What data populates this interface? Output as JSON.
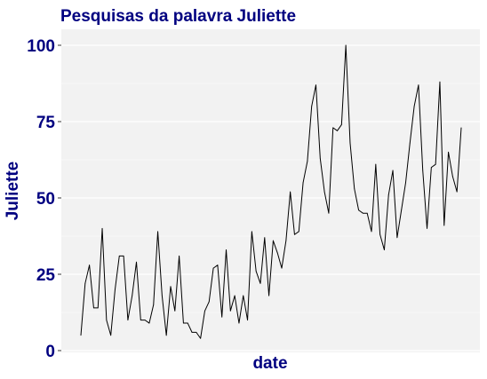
{
  "chart_data": {
    "type": "line",
    "title": "Pesquisas da palavra Juliette",
    "xlabel": "date",
    "ylabel": "Juliette",
    "ylim": [
      0,
      100
    ],
    "yticks": [
      0,
      25,
      50,
      75,
      100
    ],
    "ytick_labels": [
      "0",
      "25",
      "50",
      "75",
      "100"
    ],
    "grid": true,
    "legend": "none",
    "colors": {
      "panel": "#f2f2f2",
      "grid_major": "#ffffff",
      "grid_minor": "#fafafa",
      "line": "#000000",
      "text": "#000080"
    },
    "series": [
      {
        "values": [
          5,
          22,
          28,
          14,
          14,
          40,
          10,
          5,
          20,
          31,
          31,
          10,
          18,
          29,
          10,
          10,
          9,
          15,
          39,
          18,
          5,
          21,
          13,
          31,
          9,
          9,
          6,
          6,
          4,
          13,
          16,
          27,
          28,
          11,
          33,
          13,
          18,
          9,
          18,
          10,
          39,
          26,
          22,
          37,
          18,
          36,
          32,
          27,
          36,
          52,
          38,
          39,
          55,
          62,
          80,
          87,
          63,
          52,
          45,
          73,
          72,
          74,
          100,
          68,
          53,
          46,
          45,
          45,
          39,
          61,
          38,
          33,
          51,
          59,
          37,
          46,
          55,
          68,
          80,
          87,
          59,
          40,
          60,
          61,
          88,
          41,
          65,
          57,
          52,
          73
        ]
      }
    ]
  }
}
